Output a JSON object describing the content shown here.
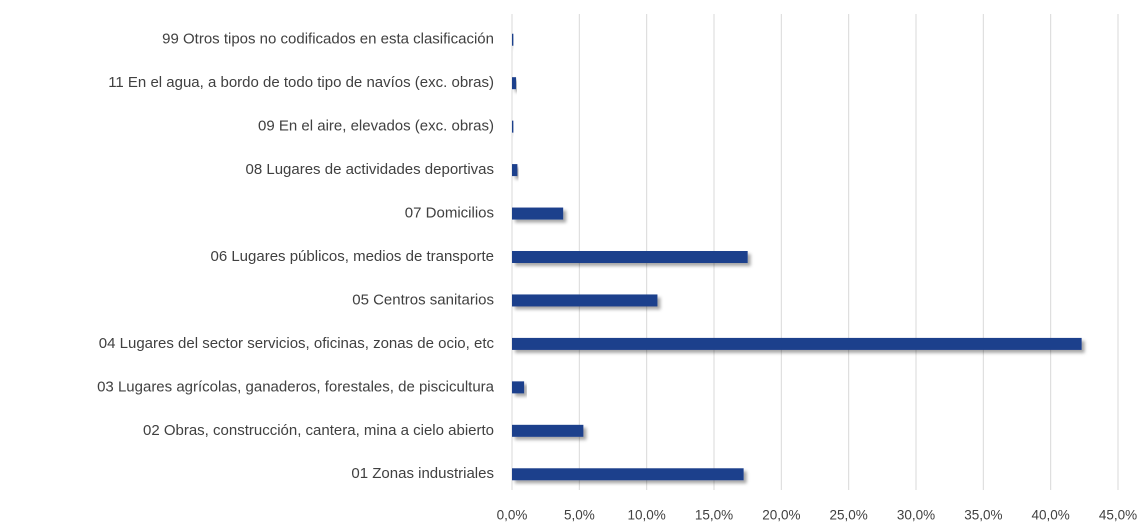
{
  "chart_data": {
    "type": "bar",
    "orientation": "horizontal",
    "categories": [
      "99 Otros tipos no codificados en esta clasificación",
      "11 En el agua, a bordo de todo tipo de navíos (exc. obras)",
      "09 En el aire, elevados (exc. obras)",
      "08 Lugares de actividades deportivas",
      "07 Domicilios",
      "06 Lugares públicos, medios de transporte",
      "05 Centros sanitarios",
      "04 Lugares del sector servicios, oficinas, zonas de ocio, etc",
      "03 Lugares agrícolas, ganaderos, forestales, de piscicultura",
      "02 Obras, construcción, cantera, mina a cielo abierto",
      "01 Zonas industriales"
    ],
    "values": [
      0.1,
      0.3,
      0.1,
      0.4,
      3.8,
      17.5,
      10.8,
      42.3,
      0.9,
      5.3,
      17.2
    ],
    "color": "#1f3f8c",
    "xlim": [
      0,
      45
    ],
    "xticks": [
      {
        "value": 0,
        "label": "0,0%"
      },
      {
        "value": 5,
        "label": "5,0%"
      },
      {
        "value": 10,
        "label": "10,0%"
      },
      {
        "value": 15,
        "label": "15,0%"
      },
      {
        "value": 20,
        "label": "20,0%"
      },
      {
        "value": 25,
        "label": "25,0%"
      },
      {
        "value": 30,
        "label": "30,0%"
      },
      {
        "value": 35,
        "label": "35,0%"
      },
      {
        "value": 40,
        "label": "40,0%"
      },
      {
        "value": 45,
        "label": "45,0%"
      }
    ],
    "grid": true
  }
}
